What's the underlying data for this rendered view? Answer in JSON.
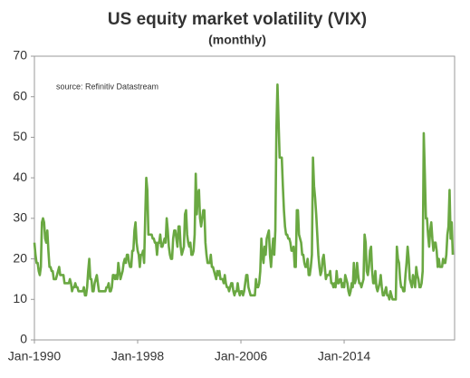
{
  "chart_data": {
    "type": "line",
    "title": "US equity market volatility  (VIX)",
    "subtitle": "(monthly)",
    "annotation": "source:  Refinitiv Datastream",
    "color": "#6aa842",
    "ylim": [
      0,
      70
    ],
    "yticks": [
      0,
      10,
      20,
      30,
      40,
      50,
      60,
      70
    ],
    "grid": false,
    "categories": [
      "Jan-1990",
      null,
      null,
      null,
      null,
      null,
      null,
      null,
      null,
      null,
      null,
      null,
      null,
      null,
      null,
      null,
      null,
      null,
      null,
      null,
      null,
      null,
      null,
      null,
      null,
      null,
      null,
      null,
      null,
      null,
      null,
      null,
      null,
      null,
      null,
      null,
      null,
      null,
      null,
      null,
      null,
      null,
      null,
      null,
      null,
      null,
      null,
      null,
      null,
      null,
      null,
      null,
      null,
      null,
      null,
      null,
      null,
      null,
      null,
      null,
      null,
      null,
      null,
      null,
      null,
      null,
      null,
      null,
      null,
      null,
      null,
      null,
      null,
      null,
      null,
      null,
      null,
      null,
      null,
      null,
      null,
      null,
      null,
      null,
      null,
      null,
      null,
      null,
      null,
      null,
      null,
      null,
      null,
      null,
      null,
      null,
      "Jan-1998",
      null,
      null,
      null,
      null,
      null,
      null,
      null,
      null,
      null,
      null,
      null,
      null,
      null,
      null,
      null,
      null,
      null,
      null,
      null,
      null,
      null,
      null,
      null,
      null,
      null,
      null,
      null,
      null,
      null,
      null,
      null,
      null,
      null,
      null,
      null,
      null,
      null,
      null,
      null,
      null,
      null,
      null,
      null,
      null,
      null,
      null,
      null,
      null,
      null,
      null,
      null,
      null,
      null,
      null,
      null,
      null,
      null,
      null,
      null,
      null,
      null,
      null,
      null,
      null,
      null,
      null,
      null,
      null,
      null,
      null,
      null,
      null,
      null,
      null,
      null,
      null,
      null,
      null,
      null,
      null,
      null,
      null,
      null,
      null,
      null,
      null,
      null,
      null,
      null,
      null,
      null,
      null,
      null,
      null,
      null,
      "Jan-2006",
      null,
      null,
      null,
      null,
      null,
      null,
      null,
      null,
      null,
      null,
      null,
      null,
      null,
      null,
      null,
      null,
      null,
      null,
      null,
      null,
      null,
      null,
      null,
      null,
      null,
      null,
      null,
      null,
      null,
      null,
      null,
      null,
      null,
      null,
      null,
      null,
      null,
      null,
      null,
      null,
      null,
      null,
      null,
      null,
      null,
      null,
      null,
      null,
      null,
      null,
      null,
      null,
      null,
      null,
      null,
      null,
      null,
      null,
      null,
      null,
      null,
      null,
      null,
      null,
      null,
      null,
      null,
      null,
      null,
      null,
      null,
      null,
      null,
      null,
      null,
      null,
      null,
      null,
      null,
      null,
      null,
      null,
      null,
      null,
      null,
      null,
      null,
      null,
      null,
      null,
      null,
      null,
      null,
      null,
      null,
      "Jan-2014",
      null,
      null,
      null,
      null,
      null,
      null,
      null,
      null,
      null,
      null,
      null,
      null,
      null,
      null,
      null,
      null,
      null,
      null,
      null,
      null,
      null,
      null,
      null,
      null,
      null,
      null,
      null,
      null,
      null,
      null,
      null,
      null,
      null,
      null,
      null,
      null,
      null,
      null,
      null,
      null,
      null,
      null,
      null,
      null,
      null,
      null,
      null,
      null,
      null,
      null,
      null,
      null,
      null,
      null,
      null,
      null,
      null,
      null,
      null,
      null,
      null,
      null,
      null,
      null,
      null,
      null,
      null,
      null,
      null,
      null,
      null,
      null,
      null,
      null,
      null,
      null,
      null,
      null,
      null,
      null,
      null,
      null,
      null,
      null,
      null,
      null,
      null,
      null,
      null,
      null,
      null,
      null,
      null,
      null,
      null,
      null,
      null,
      null,
      null,
      null,
      null
    ],
    "values": [
      24,
      21,
      19,
      19,
      17,
      16,
      18,
      29,
      30,
      29,
      25,
      24,
      27,
      22,
      18,
      18,
      17,
      17,
      15,
      15,
      15,
      16,
      17,
      18,
      16,
      16,
      16,
      16,
      14,
      14,
      14,
      14,
      14,
      15,
      14,
      12,
      13,
      13,
      14,
      13,
      13,
      12,
      12,
      12,
      12,
      12,
      13,
      11,
      11,
      13,
      17,
      20,
      15,
      15,
      12,
      12,
      14,
      15,
      16,
      14,
      12,
      12,
      12,
      12,
      12,
      12,
      12,
      13,
      13,
      14,
      12,
      12,
      13,
      16,
      16,
      15,
      16,
      15,
      19,
      17,
      15,
      16,
      17,
      19,
      20,
      19,
      21,
      21,
      19,
      18,
      18,
      22,
      22,
      27,
      29,
      24,
      22,
      21,
      18,
      21,
      21,
      22,
      19,
      30,
      40,
      37,
      26,
      26,
      26,
      26,
      25,
      25,
      24,
      24,
      21,
      24,
      24,
      26,
      23,
      23,
      24,
      25,
      24,
      30,
      27,
      23,
      21,
      20,
      20,
      25,
      27,
      27,
      25,
      23,
      28,
      28,
      23,
      21,
      22,
      23,
      31,
      32,
      26,
      24,
      23,
      24,
      21,
      21,
      22,
      26,
      41,
      31,
      36,
      37,
      30,
      28,
      30,
      32,
      32,
      24,
      21,
      19,
      19,
      19,
      21,
      18,
      18,
      17,
      16,
      15,
      17,
      16,
      17,
      15,
      15,
      15,
      14,
      16,
      14,
      13,
      13,
      12,
      13,
      14,
      14,
      12,
      11,
      12,
      12,
      14,
      12,
      11,
      12,
      12,
      11,
      12,
      14,
      16,
      16,
      13,
      12,
      11,
      11,
      11,
      11,
      11,
      15,
      13,
      13,
      14,
      17,
      25,
      21,
      19,
      23,
      21,
      25,
      26,
      27,
      21,
      18,
      22,
      25,
      21,
      27,
      52,
      63,
      54,
      45,
      45,
      45,
      38,
      32,
      28,
      26,
      26,
      25,
      25,
      24,
      22,
      22,
      23,
      18,
      18,
      32,
      32,
      26,
      25,
      24,
      21,
      21,
      19,
      18,
      18,
      20,
      16,
      16,
      18,
      21,
      45,
      38,
      35,
      31,
      26,
      21,
      18,
      16,
      17,
      20,
      21,
      18,
      15,
      16,
      16,
      16,
      17,
      14,
      14,
      13,
      14,
      13,
      17,
      14,
      14,
      15,
      15,
      13,
      14,
      13,
      16,
      15,
      14,
      12,
      11,
      12,
      14,
      13,
      19,
      14,
      15,
      19,
      16,
      14,
      14,
      13,
      14,
      15,
      26,
      24,
      17,
      16,
      18,
      22,
      23,
      17,
      14,
      14,
      17,
      13,
      12,
      13,
      14,
      16,
      13,
      11,
      11,
      12,
      13,
      11,
      11,
      10,
      12,
      11,
      10,
      10,
      10,
      10,
      23,
      20,
      19,
      15,
      13,
      13,
      12,
      12,
      16,
      19,
      23,
      20,
      15,
      14,
      13,
      16,
      15,
      13,
      18,
      16,
      15,
      13,
      13,
      14,
      17,
      51,
      41,
      30,
      30,
      26,
      23,
      27,
      29,
      25,
      22,
      24,
      24,
      22,
      18,
      20,
      18,
      18,
      18,
      20,
      19,
      19,
      21,
      26,
      28,
      37,
      25,
      29,
      21
    ]
  }
}
